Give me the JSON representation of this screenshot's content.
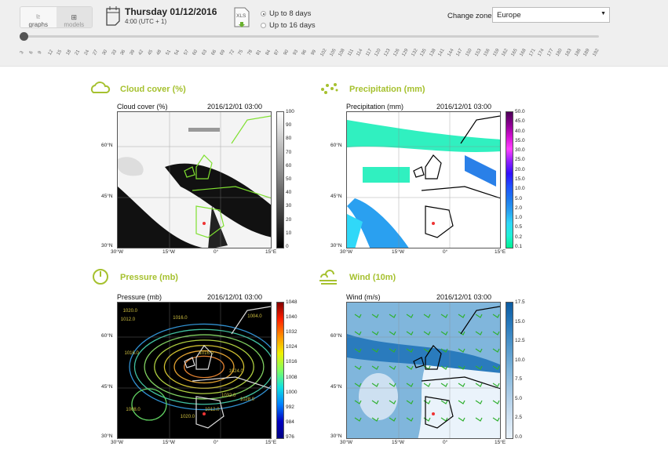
{
  "header": {
    "view_toggle": [
      {
        "label": "graphs",
        "icon": "chart-icon",
        "active": true
      },
      {
        "label": "models",
        "icon": "grid-icon",
        "active": false
      }
    ],
    "date_title": "Thursday 01/12/2016",
    "time_subtitle": "4:00 (UTC + 1)",
    "xls_label": "XLS",
    "range_options": [
      {
        "label": "Up to 8 days",
        "checked": true
      },
      {
        "label": "Up to 16 days",
        "checked": false
      }
    ],
    "zone_label": "Change zone:",
    "zone_value": "Europe",
    "slider": {
      "value": 3,
      "ticks": [
        "3",
        "6",
        "9",
        "12",
        "15",
        "18",
        "21",
        "24",
        "27",
        "30",
        "33",
        "36",
        "39",
        "42",
        "45",
        "48",
        "51",
        "54",
        "57",
        "60",
        "63",
        "66",
        "69",
        "72",
        "75",
        "78",
        "81",
        "84",
        "87",
        "90",
        "93",
        "96",
        "99",
        "102",
        "105",
        "108",
        "111",
        "114",
        "117",
        "120",
        "123",
        "126",
        "129",
        "132",
        "135",
        "138",
        "141",
        "144",
        "147",
        "150",
        "153",
        "156",
        "159",
        "162",
        "165",
        "168",
        "171",
        "174",
        "177",
        "180",
        "183",
        "186",
        "189",
        "192"
      ]
    }
  },
  "accent": "#a6c12f",
  "panels": [
    {
      "heading": "Cloud cover (%)",
      "icon": "cloud-icon",
      "map_title": "Cloud cover (%)",
      "timestamp": "2016/12/01 03:00",
      "colorbar": [
        "100",
        "90",
        "80",
        "70",
        "60",
        "50",
        "40",
        "30",
        "20",
        "10",
        "0"
      ]
    },
    {
      "heading": "Precipitation (mm)",
      "icon": "rain-drops-icon",
      "map_title": "Precipitation (mm)",
      "timestamp": "2016/12/01 03:00",
      "colorbar": [
        "50.0",
        "45.0",
        "40.0",
        "35.0",
        "30.0",
        "25.0",
        "20.0",
        "15.0",
        "10.0",
        "5.0",
        "2.0",
        "1.0",
        "0.5",
        "0.2",
        "0.1"
      ]
    },
    {
      "heading": "Pressure (mb)",
      "icon": "gauge-icon",
      "map_title": "Pressure (mb)",
      "timestamp": "2016/12/01 03:00",
      "colorbar": [
        "1048",
        "1040",
        "1032",
        "1024",
        "1016",
        "1008",
        "1000",
        "992",
        "984",
        "976"
      ],
      "contour_labels": [
        "1020.0",
        "1012.0",
        "1016.0",
        "1004.0",
        "1016.0",
        "1024.0",
        "1032.0",
        "1028.0",
        "1012.0",
        "1016.0",
        "1020.0",
        "1008.0"
      ]
    },
    {
      "heading": "Wind (10m)",
      "icon": "wind-icon",
      "map_title": "Wind (m/s)",
      "timestamp": "2016/12/01 03:00",
      "colorbar": [
        "17.5",
        "15.0",
        "12.5",
        "10.0",
        "7.5",
        "5.0",
        "2.5",
        "0.0"
      ]
    }
  ],
  "axes": {
    "lat": [
      "60°N",
      "45°N",
      "30°N"
    ],
    "lon": [
      "30°W",
      "15°W",
      "0°",
      "15°E"
    ]
  }
}
